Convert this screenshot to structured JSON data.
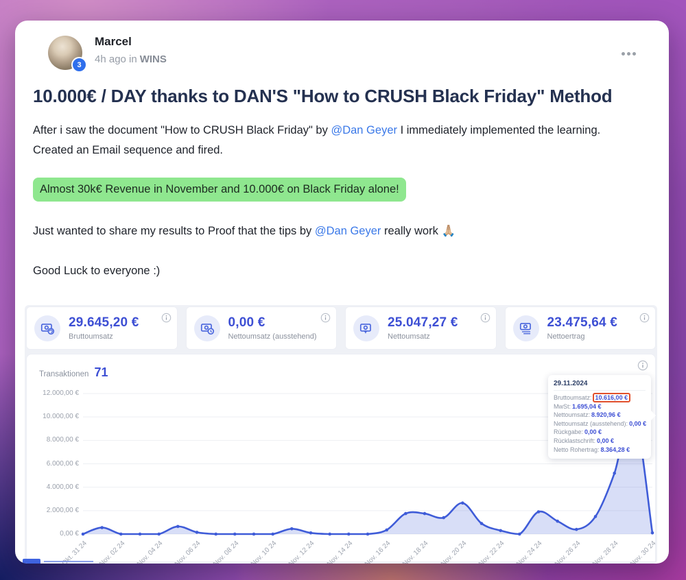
{
  "post": {
    "author": "Marcel",
    "author_badge": "3",
    "meta_time": "4h ago in",
    "meta_group": "WINS",
    "title": "10.000€ / DAY thanks to DAN'S \"How to CRUSH Black Friday\" Method",
    "p1_before": "After i saw the document \"How to CRUSH Black Friday\" by ",
    "mention": "@Dan Geyer",
    "p1_after": " I immediately implemented the learning.",
    "p2": "Created an Email sequence and fired.",
    "highlight": "Almost 30k€ Revenue in November and 10.000€ on Black Friday alone!",
    "p3_before": "Just wanted to share my results to Proof that the tips by ",
    "p3_after": " really work 🙏🏼",
    "p4": "Good Luck to everyone :)"
  },
  "stats": {
    "cards": [
      {
        "value": "29.645,20 €",
        "label": "Bruttoumsatz"
      },
      {
        "value": "0,00 €",
        "label": "Nettoumsatz (ausstehend)"
      },
      {
        "value": "25.047,27 €",
        "label": "Nettoumsatz"
      },
      {
        "value": "23.475,64 €",
        "label": "Nettoertrag"
      }
    ]
  },
  "chart": {
    "label": "Transaktionen",
    "count": "71"
  },
  "chart_data": {
    "type": "area",
    "title": "Transaktionen",
    "transactions_count": 71,
    "x": [
      "Okt. 31 24",
      "Nov. 01 24",
      "Nov. 02 24",
      "Nov. 03 24",
      "Nov. 04 24",
      "Nov. 05 24",
      "Nov. 06 24",
      "Nov. 07 24",
      "Nov. 08 24",
      "Nov. 09 24",
      "Nov. 10 24",
      "Nov. 11 24",
      "Nov. 12 24",
      "Nov. 13 24",
      "Nov. 14 24",
      "Nov. 15 24",
      "Nov. 16 24",
      "Nov. 17 24",
      "Nov. 18 24",
      "Nov. 19 24",
      "Nov. 20 24",
      "Nov. 21 24",
      "Nov. 22 24",
      "Nov. 23 24",
      "Nov. 24 24",
      "Nov. 25 24",
      "Nov. 26 24",
      "Nov. 27 24",
      "Nov. 28 24",
      "Nov. 29 24",
      "Nov. 30 24"
    ],
    "values": [
      0,
      550,
      0,
      0,
      0,
      650,
      150,
      0,
      0,
      0,
      0,
      450,
      100,
      0,
      0,
      0,
      350,
      1750,
      1750,
      1400,
      2650,
      900,
      300,
      0,
      1900,
      1100,
      400,
      1500,
      5200,
      10616,
      100
    ],
    "x_tick_labels": [
      "Okt. 31 24",
      "Nov. 02 24",
      "Nov. 04 24",
      "Nov. 06 24",
      "Nov. 08 24",
      "Nov. 10 24",
      "Nov. 12 24",
      "Nov. 14 24",
      "Nov. 16 24",
      "Nov. 18 24",
      "Nov. 20 24",
      "Nov. 22 24",
      "Nov. 24 24",
      "Nov. 26 24",
      "Nov. 28 24",
      "Nov. 30 24"
    ],
    "y_tick_labels": [
      "12.000,00 €",
      "10.000,00 €",
      "8.000,00 €",
      "6.000,00 €",
      "4.000,00 €",
      "2.000,00 €",
      "0,00 €"
    ],
    "ylim": [
      0,
      12000
    ],
    "grid": true,
    "legend": "none",
    "line_color": "#3f5cd8",
    "fill_color": "rgba(77,106,220,0.22)"
  },
  "tooltip": {
    "date": "29.11.2024",
    "rows": [
      {
        "label": "Bruttoumsatz:",
        "value": "10.616,00 €"
      },
      {
        "label": "MwSt:",
        "value": "1.695,04 €"
      },
      {
        "label": "Nettoumsatz:",
        "value": "8.920,96 €"
      },
      {
        "label": "Nettoumsatz (ausstehend):",
        "value": "0,00 €"
      },
      {
        "label": "Rückgabe:",
        "value": "0,00 €"
      },
      {
        "label": "Rücklastschrift:",
        "value": "0,00 €"
      },
      {
        "label": "Netto Rohertrag:",
        "value": "8.364,28 €"
      }
    ],
    "highlight_color": "#e2502c"
  }
}
